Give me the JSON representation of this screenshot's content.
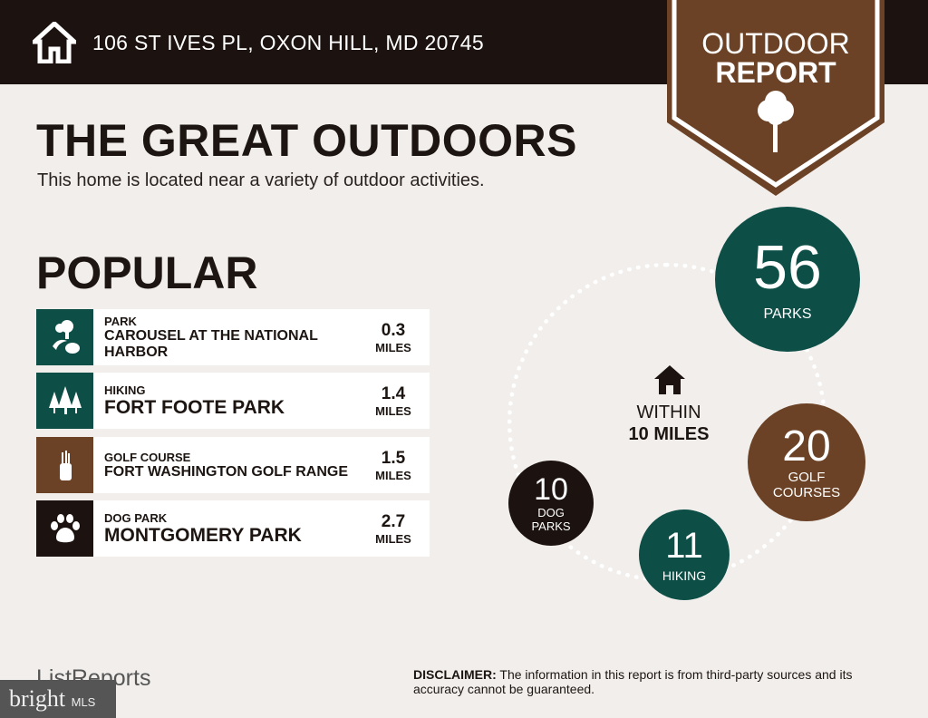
{
  "header": {
    "address": "106 ST IVES PL, OXON HILL, MD 20745",
    "badge_line1": "OUTDOOR",
    "badge_line2": "REPORT"
  },
  "title": "THE GREAT OUTDOORS",
  "subtitle": "This home is located near a variety of outdoor activities.",
  "popular": {
    "heading": "POPULAR",
    "items": [
      {
        "category": "PARK",
        "name": "CAROUSEL AT THE NATIONAL HARBOR",
        "distance": "0.3",
        "unit": "MILES",
        "icon": "park-icon",
        "color": "#0d4f47"
      },
      {
        "category": "HIKING",
        "name": "FORT FOOTE PARK",
        "distance": "1.4",
        "unit": "MILES",
        "icon": "trees-icon",
        "color": "#0d4f47"
      },
      {
        "category": "GOLF COURSE",
        "name": "FORT WASHINGTON GOLF RANGE",
        "distance": "1.5",
        "unit": "MILES",
        "icon": "golf-bag-icon",
        "color": "#6b4226"
      },
      {
        "category": "DOG PARK",
        "name": "MONTGOMERY PARK",
        "distance": "2.7",
        "unit": "MILES",
        "icon": "paw-icon",
        "color": "#1c1310"
      }
    ]
  },
  "within": {
    "line1": "WITHIN",
    "line2": "10 MILES"
  },
  "counts": [
    {
      "value": "56",
      "label": "PARKS",
      "color": "#0d4f47"
    },
    {
      "value": "20",
      "label": "GOLF COURSES",
      "color": "#6b4226"
    },
    {
      "value": "11",
      "label": "HIKING",
      "color": "#0d4f47"
    },
    {
      "value": "10",
      "label": "DOG PARKS",
      "color": "#1c1310"
    }
  ],
  "footer": {
    "brand": "ListReports",
    "disclaimer_label": "DISCLAIMER:",
    "disclaimer": " The information in this report is from third-party sources and its accuracy cannot be guaranteed.",
    "watermark": "bright",
    "watermark_suffix": "MLS"
  }
}
